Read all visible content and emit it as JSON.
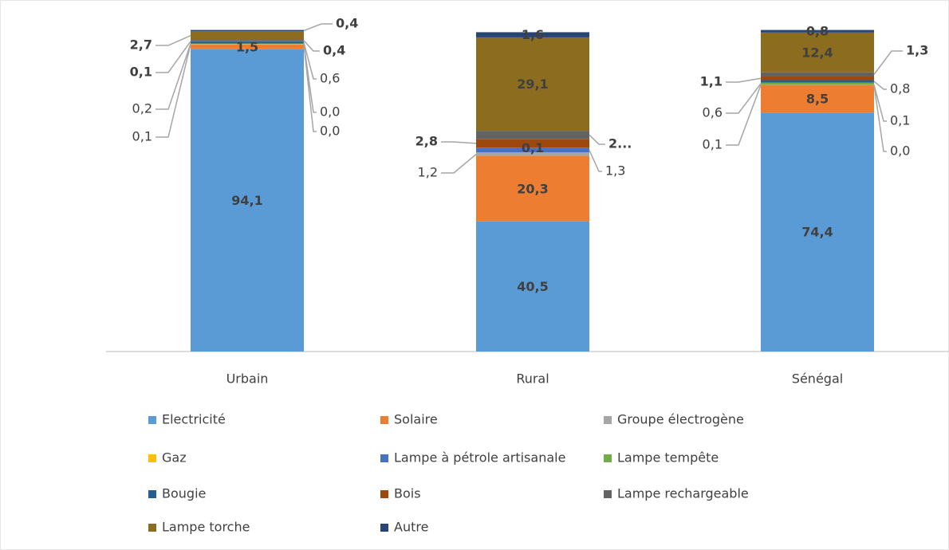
{
  "chart_data": {
    "type": "stacked_bar",
    "categories": [
      "Urbain",
      "Rural",
      "Sénégal"
    ],
    "ylim": [
      0,
      100
    ],
    "series": [
      {
        "name": "Electricité",
        "color": "#5b9bd5",
        "values": [
          94.1,
          40.5,
          74.4
        ],
        "value_labels": [
          "94,1",
          "40,5",
          "74,4"
        ]
      },
      {
        "name": "Solaire",
        "color": "#ed7d31",
        "values": [
          1.5,
          20.3,
          8.5
        ],
        "value_labels": [
          "1,5",
          "20,3",
          "8,5"
        ]
      },
      {
        "name": "Groupe électrogène",
        "color": "#a5a5a5",
        "values": [
          0.0,
          1.2,
          0.0
        ],
        "value_labels": [
          "0,0",
          "1,2",
          "0,0"
        ]
      },
      {
        "name": "Gaz",
        "color": "#ffc000",
        "values": [
          0.1,
          null,
          0.1
        ],
        "value_labels": [
          "0,1",
          null,
          "0,1"
        ]
      },
      {
        "name": "Lampe à pétrole artisanale",
        "color": "#4472c4",
        "values": [
          0.0,
          1.3,
          0.1
        ],
        "value_labels": [
          "0,0",
          "1,3",
          "0,1"
        ]
      },
      {
        "name": "Lampe tempête",
        "color": "#70ad47",
        "values": [
          0.2,
          0.1,
          0.6
        ],
        "value_labels": [
          "0,2",
          "0,1",
          "0,6"
        ]
      },
      {
        "name": "Bougie",
        "color": "#255e91",
        "values": [
          0.6,
          null,
          0.8
        ],
        "value_labels": [
          "0,6",
          null,
          "0,8"
        ]
      },
      {
        "name": "Bois",
        "color": "#9e480e",
        "values": [
          0.1,
          2.8,
          1.1
        ],
        "value_labels": [
          "0,1",
          "2,8",
          "1,1"
        ]
      },
      {
        "name": "Lampe rechargeable",
        "color": "#636363",
        "values": [
          0.4,
          2.5,
          1.3
        ],
        "value_labels": [
          "0,4",
          "2...",
          "1,3"
        ]
      },
      {
        "name": "Lampe torche",
        "color": "#8c6d1f",
        "values": [
          2.7,
          29.1,
          12.4
        ],
        "value_labels": [
          "2,7",
          "29,1",
          "12,4"
        ]
      },
      {
        "name": "Autre",
        "color": "#264478",
        "values": [
          0.4,
          1.6,
          0.8
        ],
        "value_labels": [
          "0,4",
          "1,6",
          "0,8"
        ]
      }
    ]
  }
}
